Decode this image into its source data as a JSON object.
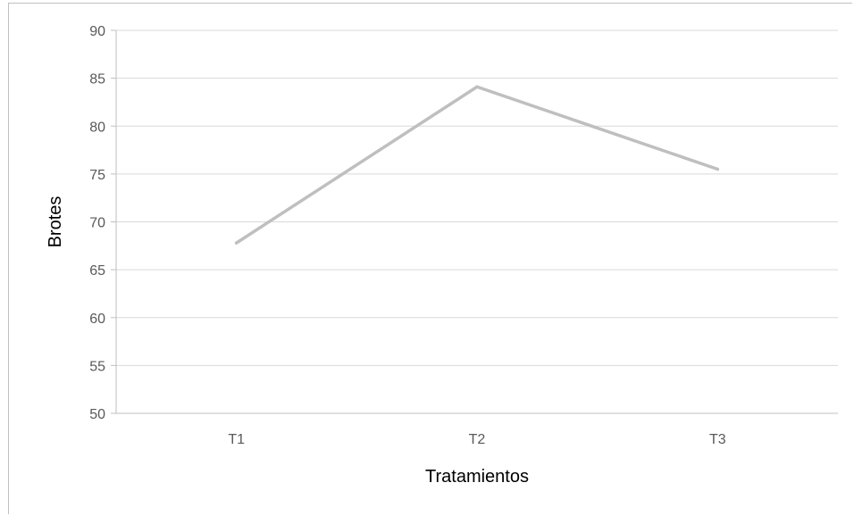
{
  "chart_data": {
    "type": "line",
    "title": "",
    "xlabel": "Tratamientos",
    "ylabel": "Brotes",
    "categories": [
      "T1",
      "T2",
      "T3"
    ],
    "series": [
      {
        "values": [
          67.8,
          84.1,
          75.5
        ]
      }
    ],
    "ylim": [
      50,
      90
    ],
    "yticks": [
      50,
      55,
      60,
      65,
      70,
      75,
      80,
      85,
      90
    ],
    "grid": true,
    "legend": "none",
    "colors": {
      "line": "#bfbfbf",
      "grid": "#d9d9d9",
      "axis": "#bfbfbf",
      "text": "#595959"
    }
  }
}
